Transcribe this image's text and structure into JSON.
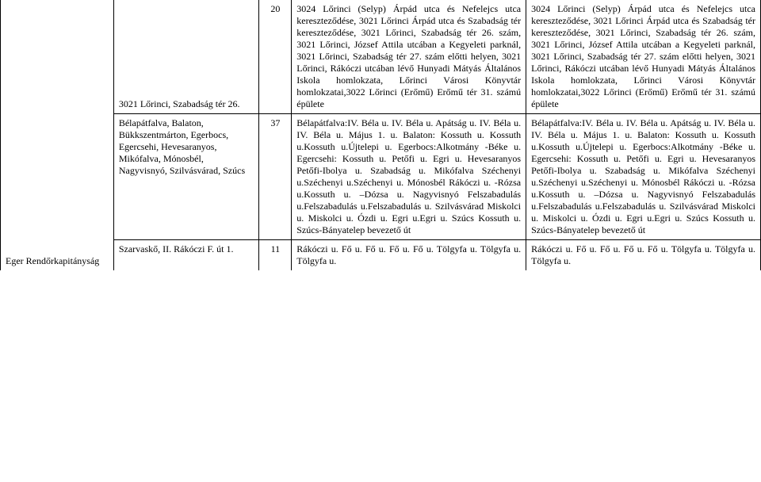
{
  "table": {
    "rows": [
      {
        "c2": "3021 Lőrinci, Szabadság tér 26.",
        "c3": "20",
        "c4": "3024 Lőrinci (Selyp) Árpád utca és Nefelejcs utca kereszteződése, 3021 Lőrinci Árpád utca és Szabadság tér kereszteződése, 3021 Lőrinci, Szabadság tér 26. szám, 3021 Lőrinci, József Attila utcában a Kegyeleti parknál, 3021 Lőrinci, Szabadság tér 27. szám előtti helyen, 3021 Lőrinci, Rákóczi utcában lévő Hunyadi Mátyás Általános Iskola homlokzata, Lőrinci Városi Könyvtár homlokzatai,3022 Lőrinci (Erőmű) Erőmű tér 31. számú épülete",
        "c5": "3024 Lőrinci (Selyp) Árpád utca és Nefelejcs utca kereszteződése, 3021 Lőrinci Árpád utca és Szabadság tér kereszteződése, 3021 Lőrinci, Szabadság tér 26. szám, 3021 Lőrinci, József Attila utcában a Kegyeleti parknál, 3021 Lőrinci, Szabadság tér 27. szám előtti helyen, 3021 Lőrinci, Rákóczi utcában lévő Hunyadi Mátyás Általános Iskola homlokzata, Lőrinci Városi Könyvtár homlokzatai,3022 Lőrinci (Erőmű) Erőmű tér 31. számú épülete"
      },
      {
        "c1": "Eger Rendőrkapitányság",
        "c2": "Bélapátfalva, Balaton, Bükkszentmárton, Egerbocs, Egercsehi, Hevesaranyos, Mikófalva, Mónosbél, Nagyvisnyó, Szilvásvárad, Szúcs",
        "c3": "37",
        "c4": "Bélapátfalva:IV. Béla u. IV. Béla u. Apátság u. IV. Béla u. IV. Béla u. Május 1. u. Balaton: Kossuth u. Kossuth u.Kossuth u.Újtelepi u. Egerbocs:Alkotmány -Béke u. Egercsehi: Kossuth u. Petőfi u. Egri u. Hevesaranyos Petőfi-Ibolya u. Szabadság u. Mikófalva Széchenyi u.Széchenyi u.Széchenyi u. Mónosbél Rákóczi u. -Rózsa u.Kossuth u. –Dózsa u. Nagyvisnyó Felszabadulás u.Felszabadulás u.Felszabadulás u. Szilvásvárad Miskolci u. Miskolci u. Ózdi u. Egri u.Egri u. Szúcs Kossuth u. Szúcs-Bányatelep bevezető út",
        "c5": "Bélapátfalva:IV. Béla u. IV. Béla u. Apátság u. IV. Béla u. IV. Béla u. Május 1. u. Balaton: Kossuth u. Kossuth u.Kossuth u.Újtelepi u. Egerbocs:Alkotmány -Béke u. Egercsehi: Kossuth u. Petőfi u. Egri u. Hevesaranyos Petőfi-Ibolya u. Szabadság u. Mikófalva Széchenyi u.Széchenyi u.Széchenyi u. Mónosbél Rákóczi u. -Rózsa u.Kossuth u. –Dózsa u. Nagyvisnyó Felszabadulás u.Felszabadulás u.Felszabadulás u. Szilvásvárad Miskolci u. Miskolci u. Ózdi u. Egri u.Egri u. Szúcs Kossuth u. Szúcs-Bányatelep bevezető út"
      },
      {
        "c2": "Szarvaskő, II. Rákóczi F. út 1.",
        "c3": "11",
        "c4": "Rákóczi u. Fő u. Fő u. Fő u. Fő u. Tölgyfa u. Tölgyfa u. Tölgyfa u.",
        "c5": "Rákóczi u. Fő u. Fő u. Fő u. Fő u. Tölgyfa u. Tölgyfa u. Tölgyfa u."
      }
    ]
  }
}
